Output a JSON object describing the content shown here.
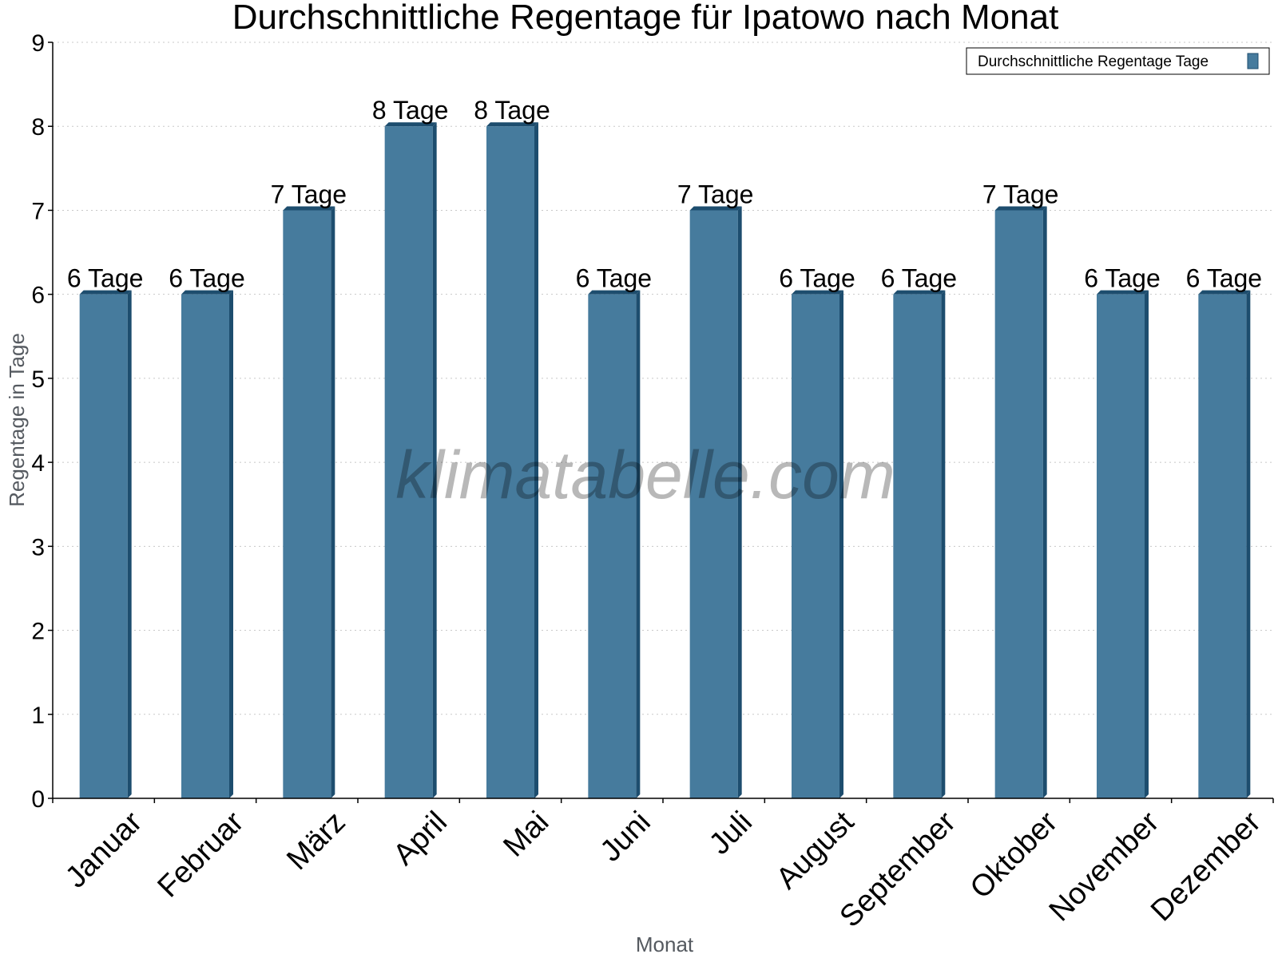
{
  "chart_data": {
    "type": "bar",
    "title": "Durchschnittliche Regentage für Ipatowo nach Monat",
    "xlabel": "Monat",
    "ylabel": "Regentage in Tage",
    "categories": [
      "Januar",
      "Februar",
      "März",
      "April",
      "Mai",
      "Juni",
      "Juli",
      "August",
      "September",
      "Oktober",
      "November",
      "Dezember"
    ],
    "series": [
      {
        "name": "Durchschnittliche Regentage Tage",
        "values": [
          6,
          6,
          7,
          8,
          8,
          6,
          7,
          6,
          6,
          7,
          6,
          6
        ],
        "labels": [
          "6 Tage",
          "6 Tage",
          "7 Tage",
          "8 Tage",
          "8 Tage",
          "6 Tage",
          "7 Tage",
          "6 Tage",
          "6 Tage",
          "7 Tage",
          "6 Tage",
          "6 Tage"
        ]
      }
    ],
    "ylim": [
      0,
      9
    ],
    "yticks": [
      "0",
      "1",
      "2",
      "3",
      "4",
      "5",
      "6",
      "7",
      "8",
      "9"
    ],
    "grid": true,
    "legend_position": "top-right",
    "watermark": "klimatabelle.com",
    "colors": {
      "bar": "#467b9d",
      "bar_side": "#1d4d6e",
      "bar_top": "#1d4d6e"
    }
  }
}
